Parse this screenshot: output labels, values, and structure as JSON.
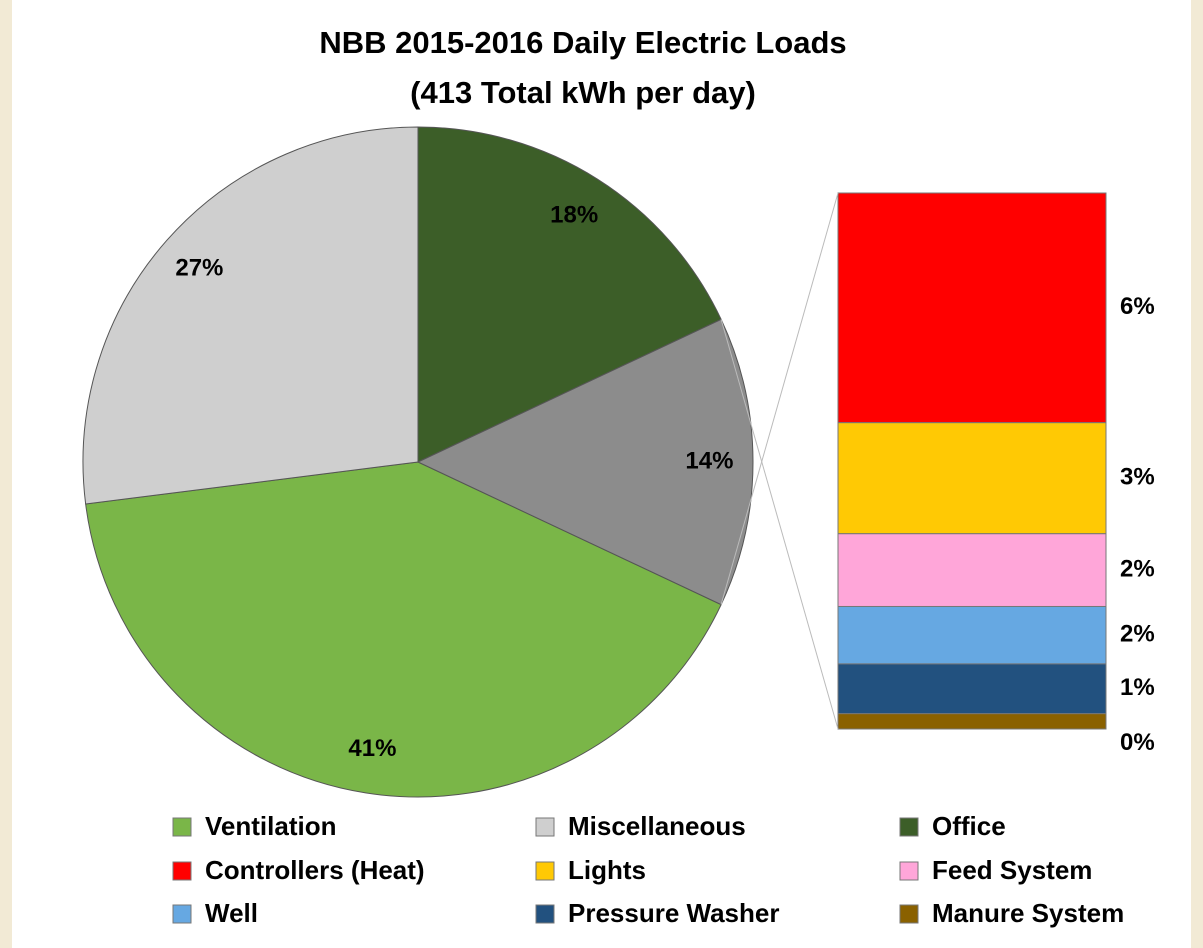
{
  "chart_data": {
    "type": "bar_of_pie",
    "title": "NBB 2015-2016 Daily Electric Loads",
    "subtitle": "(413 Total kWh per day)",
    "pie": {
      "slices": [
        {
          "name": "Ventilation",
          "color": "#7ab648",
          "value": 41,
          "value_label": "41%"
        },
        {
          "name": "Miscellaneous",
          "color": "#cfcfcf",
          "value": 27,
          "value_label": "27%"
        },
        {
          "name": "Office",
          "color": "#3c5e28",
          "value": 18,
          "value_label": "18%"
        },
        {
          "color": "#8c8c8c",
          "value": 14,
          "value_label": "14%"
        }
      ]
    },
    "bar": {
      "segments": [
        {
          "name": "Controllers (Heat)",
          "color": "#ff0000",
          "value": 6.0,
          "value_label": "6%"
        },
        {
          "name": "Lights",
          "color": "#ffc904",
          "value": 2.9,
          "value_label": "3%"
        },
        {
          "name": "Feed System",
          "color": "#ffa6d9",
          "value": 1.9,
          "value_label": "2%"
        },
        {
          "name": "Well",
          "color": "#66a8e2",
          "value": 1.5,
          "value_label": "2%"
        },
        {
          "name": "Pressure Washer",
          "color": "#22517f",
          "value": 1.3,
          "value_label": "1%"
        },
        {
          "name": "Manure System",
          "color": "#8a6100",
          "value": 0.4,
          "value_label": "0%"
        }
      ]
    },
    "legend": "bottom"
  }
}
